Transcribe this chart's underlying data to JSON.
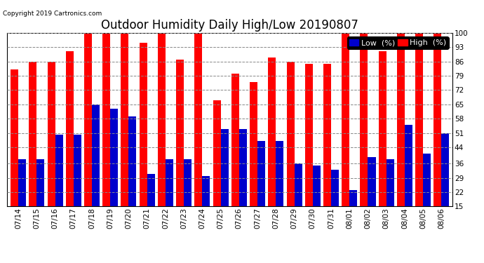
{
  "title": "Outdoor Humidity Daily High/Low 20190807",
  "copyright": "Copyright 2019 Cartronics.com",
  "categories": [
    "07/14",
    "07/15",
    "07/16",
    "07/17",
    "07/18",
    "07/19",
    "07/20",
    "07/21",
    "07/22",
    "07/23",
    "07/24",
    "07/25",
    "07/26",
    "07/27",
    "07/28",
    "07/29",
    "07/30",
    "07/31",
    "08/01",
    "08/02",
    "08/03",
    "08/04",
    "08/05",
    "08/06"
  ],
  "high_values": [
    82,
    86,
    86,
    91,
    100,
    100,
    100,
    95,
    100,
    87,
    100,
    67,
    80,
    76,
    88,
    86,
    85,
    85,
    100,
    100,
    91,
    100,
    100,
    100
  ],
  "low_values": [
    38,
    38,
    50,
    50,
    65,
    63,
    59,
    31,
    38,
    38,
    30,
    53,
    53,
    47,
    47,
    36,
    35,
    33,
    23,
    39,
    38,
    55,
    41,
    51
  ],
  "high_color": "#ff0000",
  "low_color": "#0000cc",
  "bg_color": "#ffffff",
  "grid_color": "#888888",
  "yticks": [
    15,
    22,
    29,
    36,
    44,
    51,
    58,
    65,
    72,
    79,
    86,
    93,
    100
  ],
  "ymin": 15,
  "ymax": 100,
  "bar_width": 0.42,
  "title_fontsize": 12,
  "tick_fontsize": 7.5,
  "legend_fontsize": 8
}
